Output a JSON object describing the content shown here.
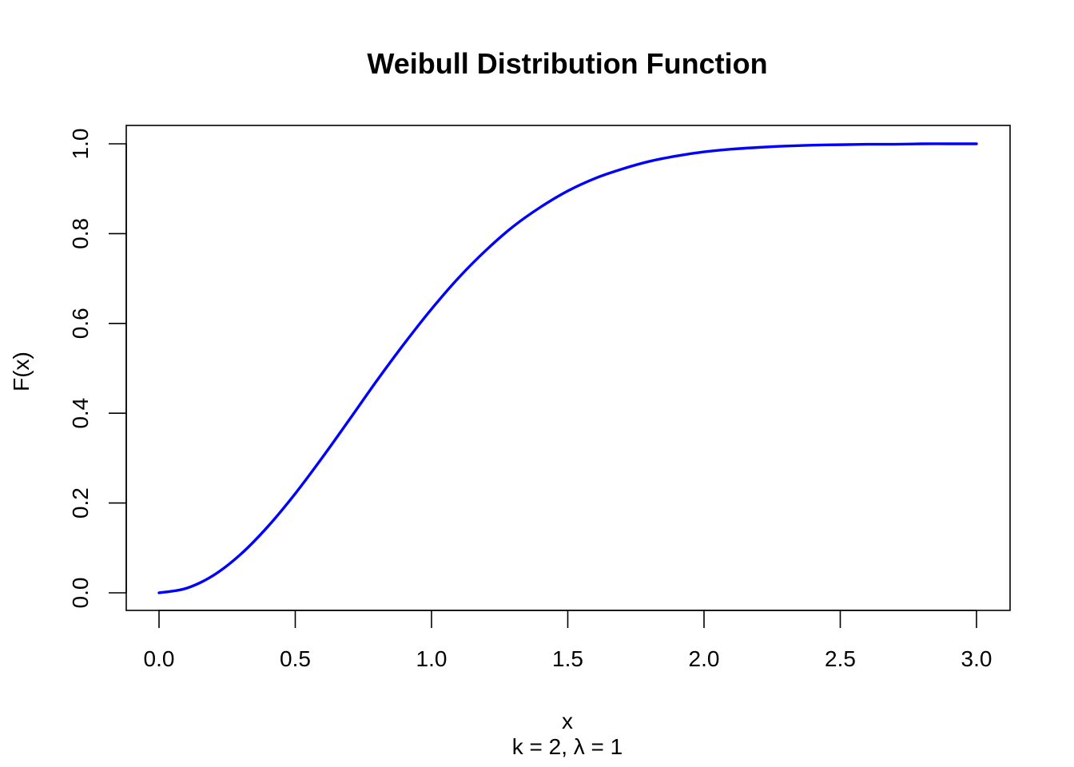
{
  "chart_data": {
    "type": "line",
    "title": "Weibull Distribution Function",
    "xlabel": "x",
    "ylabel": "F(x)",
    "subtitle": "k = 2,  λ = 1",
    "xlim": [
      0,
      3
    ],
    "ylim": [
      0,
      1
    ],
    "xticks": [
      "0.0",
      "0.5",
      "1.0",
      "1.5",
      "2.0",
      "2.5",
      "3.0"
    ],
    "yticks": [
      "0.0",
      "0.2",
      "0.4",
      "0.6",
      "0.8",
      "1.0"
    ],
    "grid": false,
    "line_color": "#0000ff",
    "series": [
      {
        "x": [
          0,
          0.1,
          0.2,
          0.3,
          0.4,
          0.5,
          0.6,
          0.7,
          0.8,
          0.9,
          1.0,
          1.1,
          1.2,
          1.3,
          1.4,
          1.5,
          1.6,
          1.7,
          1.8,
          1.9,
          2.0,
          2.1,
          2.2,
          2.3,
          2.4,
          2.5,
          2.6,
          2.7,
          2.8,
          2.9,
          3.0
        ],
        "y": [
          0,
          0.01,
          0.039,
          0.086,
          0.148,
          0.221,
          0.302,
          0.387,
          0.473,
          0.555,
          0.632,
          0.702,
          0.763,
          0.816,
          0.859,
          0.895,
          0.923,
          0.944,
          0.961,
          0.973,
          0.982,
          0.988,
          0.992,
          0.995,
          0.997,
          0.998,
          0.999,
          0.999,
          1.0,
          1.0,
          1.0
        ]
      }
    ]
  }
}
